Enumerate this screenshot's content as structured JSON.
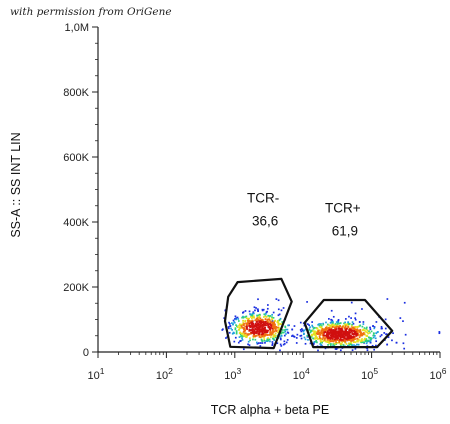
{
  "watermark": {
    "text": "with permission from OriGene"
  },
  "chart_data": {
    "type": "scatter",
    "subtype": "flow-cytometry-density-dot-plot",
    "title": "",
    "xlabel": "TCR alpha + beta PE",
    "ylabel": "SS-A :: SS INT LIN",
    "x_scale": "log",
    "xlim": [
      10,
      1000000
    ],
    "x_tick_values": [
      10,
      100,
      1000,
      10000,
      100000,
      1000000
    ],
    "x_ticks": [
      {
        "base": "10",
        "exp": "1"
      },
      {
        "base": "10",
        "exp": "2"
      },
      {
        "base": "10",
        "exp": "3"
      },
      {
        "base": "10",
        "exp": "4"
      },
      {
        "base": "10",
        "exp": "5"
      },
      {
        "base": "10",
        "exp": "6"
      }
    ],
    "y_scale": "linear",
    "ylim": [
      0,
      1000000
    ],
    "y_tick_values": [
      0,
      200000,
      400000,
      600000,
      800000,
      1000000
    ],
    "y_ticks": [
      "0",
      "200K",
      "400K",
      "600K",
      "800K",
      "1,0M"
    ],
    "grid": false,
    "colormap": [
      "#1a2ee0",
      "#1f9fe0",
      "#2fd07a",
      "#e6e020",
      "#f07010",
      "#d01010"
    ],
    "gates": [
      {
        "name": "TCR-",
        "value": "36,6",
        "polygon": [
          [
            800,
            170000
          ],
          [
            1100,
            215000
          ],
          [
            4800,
            225000
          ],
          [
            6800,
            155000
          ],
          [
            3700,
            12000
          ],
          [
            860,
            16000
          ],
          [
            720,
            95000
          ]
        ],
        "cluster_center": [
          2300,
          75000
        ],
        "label_at": [
          2600,
          460000
        ]
      },
      {
        "name": "TCR+",
        "value": "61,9",
        "polygon": [
          [
            10500,
            90000
          ],
          [
            20000,
            160000
          ],
          [
            80000,
            160000
          ],
          [
            200000,
            65000
          ],
          [
            120000,
            15000
          ],
          [
            14000,
            15000
          ]
        ],
        "cluster_center": [
          35000,
          55000
        ],
        "label_at": [
          38000,
          430000
        ]
      }
    ]
  }
}
